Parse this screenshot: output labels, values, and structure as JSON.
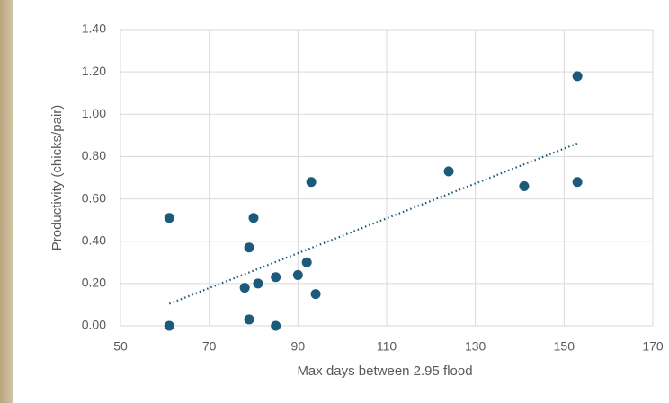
{
  "chart_data": {
    "type": "scatter",
    "x_label": "Max days between 2.95 flood",
    "y_label": "Productivity (chicks/pair)",
    "series": [
      {
        "name": "Productivity",
        "color": "#1b5a7a",
        "x": [
          61,
          61,
          80,
          79,
          78,
          81,
          79,
          85,
          85,
          90,
          92,
          93,
          94,
          124,
          141,
          153,
          153
        ],
        "values": [
          0.51,
          0.0,
          0.51,
          0.37,
          0.18,
          0.2,
          0.03,
          0.23,
          0.0,
          0.24,
          0.3,
          0.68,
          0.15,
          0.73,
          0.66,
          0.68,
          1.18
        ]
      }
    ],
    "trendline": "linear",
    "xlim": [
      50,
      170
    ],
    "xticks": [
      50,
      70,
      90,
      110,
      130,
      150,
      170
    ],
    "ylim": [
      0,
      1.4
    ],
    "yticks": [
      {
        "value": 0,
        "label": "0.00"
      },
      {
        "value": 0.2,
        "label": "0.20"
      },
      {
        "value": 0.4,
        "label": "0.40"
      },
      {
        "value": 0.6,
        "label": "0.60"
      },
      {
        "value": 0.8,
        "label": "0.80"
      },
      {
        "value": 1.0,
        "label": "1.00"
      },
      {
        "value": 1.2,
        "label": "1.20"
      },
      {
        "value": 1.4,
        "label": "1.40"
      }
    ],
    "grid": true
  }
}
